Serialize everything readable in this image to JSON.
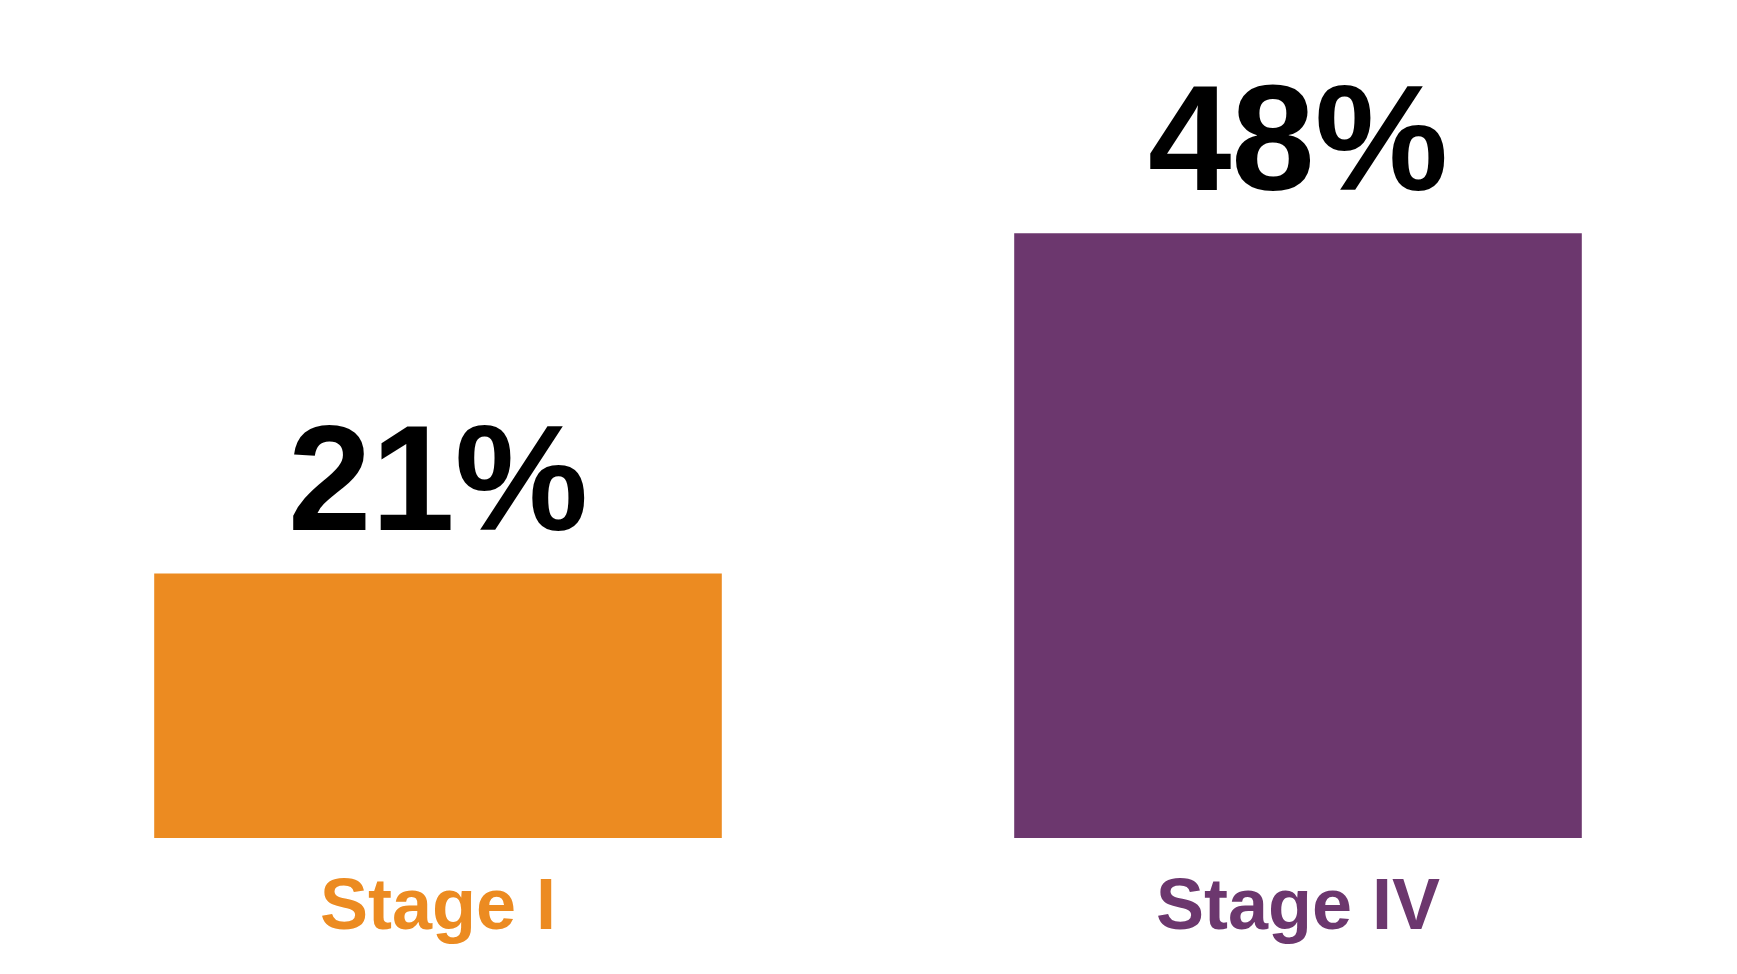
{
  "chart_data": {
    "type": "bar",
    "categories": [
      "Stage I",
      "Stage IV"
    ],
    "values": [
      21,
      48
    ],
    "colors": [
      "#ec8b21",
      "#6c376e"
    ],
    "value_labels": [
      "21%",
      "48%"
    ]
  }
}
